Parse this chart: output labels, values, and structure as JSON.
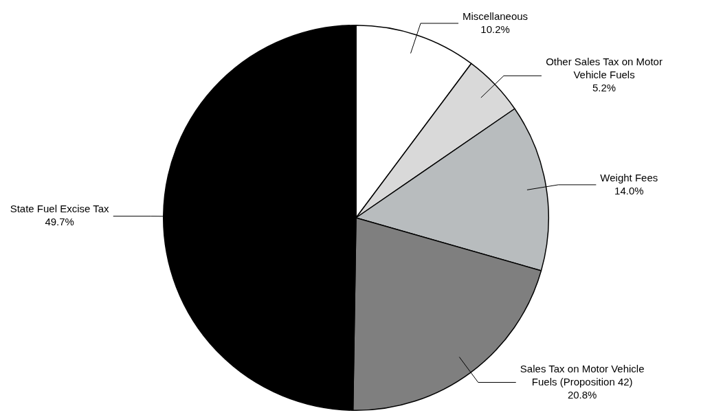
{
  "chart_data": {
    "type": "pie",
    "categories": [
      "Miscellaneous",
      "Other Sales Tax on Motor Vehicle Fuels",
      "Weight Fees",
      "Sales Tax on Motor Vehicle Fuels (Proposition 42)",
      "State Fuel Excise Tax"
    ],
    "values": [
      10.2,
      5.2,
      14.0,
      20.8,
      49.7
    ],
    "value_labels": [
      "10.2%",
      "5.2%",
      "14.0%",
      "20.8%",
      "49.7%"
    ],
    "colors": [
      "#ffffff",
      "#d9d9d9",
      "#b8bcbe",
      "#7f7f7f",
      "#000000"
    ]
  }
}
